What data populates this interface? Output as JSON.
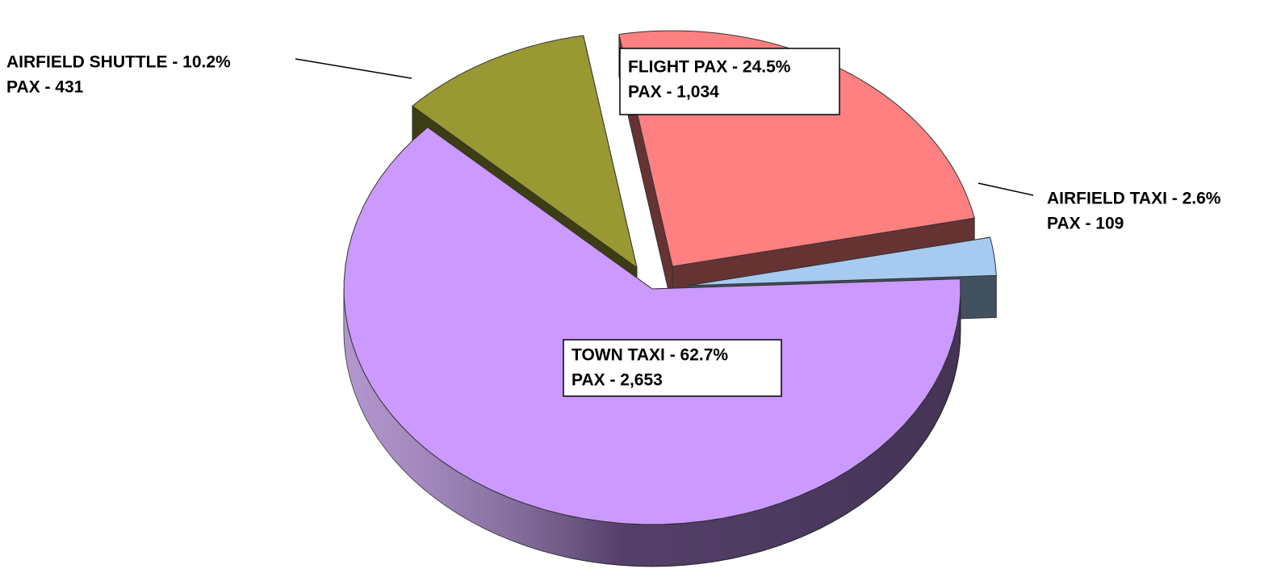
{
  "chart_data": {
    "type": "pie3d",
    "series": [
      {
        "values": [
          24.5,
          2.6,
          62.7,
          10.2
        ],
        "value_labels": [
          "FLIGHT PAX - 24.5%",
          "AIRFIELD TAXI - 2.6%",
          "TOWN TAXI - 62.7%",
          "AIRFIELD SHUTTLE - 10.2%"
        ],
        "pax_labels": [
          "PAX - 1,034",
          "PAX - 109",
          "PAX - 2,653",
          "PAX - 431"
        ],
        "colors": [
          "#ff8080",
          "#a6caf0",
          "#cc99ff",
          "#999933"
        ]
      }
    ]
  }
}
